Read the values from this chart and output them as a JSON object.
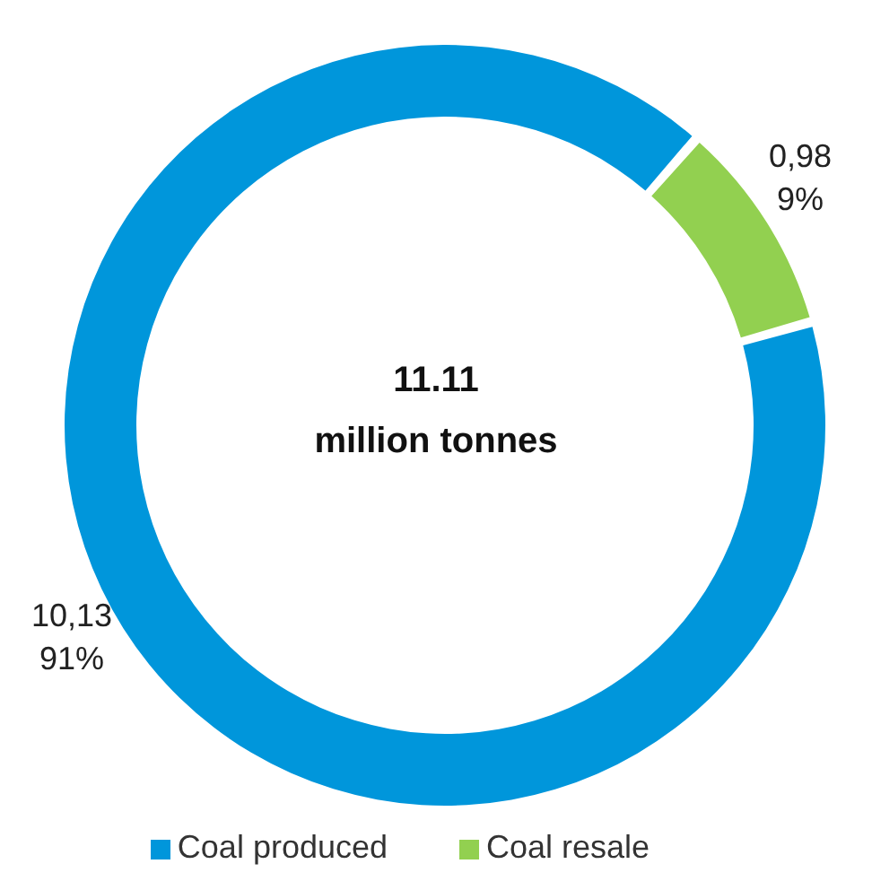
{
  "chart_data": {
    "type": "donut",
    "categories": [
      "Coal produced",
      "Coal resale"
    ],
    "values": [
      10.13,
      0.98
    ],
    "colors": [
      "#0096db",
      "#92d050"
    ],
    "value_labels": [
      "10,13\n91%",
      "0,98\n9%"
    ],
    "annotations": [
      "11.11",
      "million tonnes"
    ],
    "legend": "bottom"
  }
}
